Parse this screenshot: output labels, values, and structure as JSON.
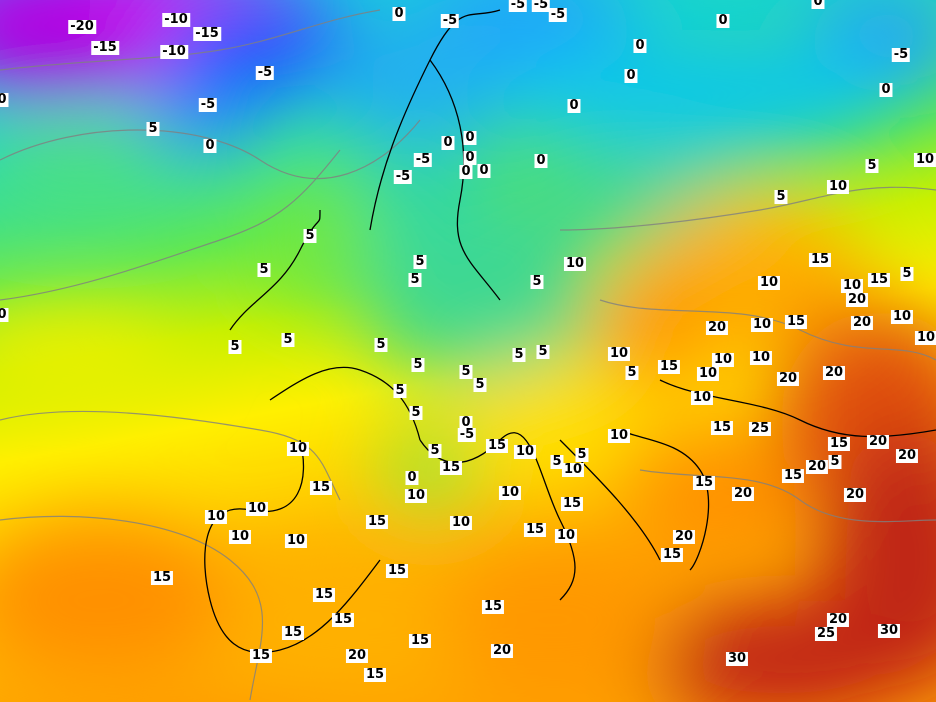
{
  "map": {
    "type": "temperature contour map",
    "color_scale": [
      {
        "value": -20,
        "color": "#c000e8"
      },
      {
        "value": -15,
        "color": "#e020f0"
      },
      {
        "value": -10,
        "color": "#2040ff"
      },
      {
        "value": -5,
        "color": "#1890ff"
      },
      {
        "value": 0,
        "color": "#10c8f0"
      },
      {
        "value": 5,
        "color": "#30e090"
      },
      {
        "value": 7,
        "color": "#70e840"
      },
      {
        "value": 10,
        "color": "#c8f000"
      },
      {
        "value": 12,
        "color": "#fff000"
      },
      {
        "value": 15,
        "color": "#ffc000"
      },
      {
        "value": 20,
        "color": "#ff9000"
      },
      {
        "value": 25,
        "color": "#e85010"
      },
      {
        "value": 30,
        "color": "#b01818"
      }
    ],
    "contour_color": "#808080",
    "border_color": "#000000",
    "labels": [
      "-20",
      "-10",
      "-15",
      "-15",
      "-10",
      "-5",
      "-5",
      "5",
      "0",
      "0",
      "-5",
      "-5",
      "-5",
      "-5",
      "0",
      "0",
      "0",
      "0",
      "-5",
      "0",
      "0",
      "0",
      "0",
      "-5",
      "-5",
      "0",
      "0",
      "0",
      "0",
      "5",
      "10",
      "5",
      "10",
      "5",
      "5",
      "5",
      "5",
      "5",
      "10",
      "15",
      "10",
      "10",
      "15",
      "5",
      "20",
      "0",
      "5",
      "5",
      "5",
      "5",
      "5",
      "5",
      "10",
      "20",
      "10",
      "15",
      "20",
      "10",
      "10",
      "5",
      "5",
      "5",
      "5",
      "15",
      "10",
      "10",
      "10",
      "20",
      "20",
      "5",
      "10",
      "10",
      "0",
      "-5",
      "5",
      "15",
      "10",
      "5",
      "5",
      "10",
      "10",
      "15",
      "25",
      "15",
      "20",
      "20",
      "15",
      "0",
      "10",
      "15",
      "10",
      "15",
      "20",
      "15",
      "20",
      "5",
      "20",
      "10",
      "10",
      "10",
      "10",
      "15",
      "10",
      "15",
      "15",
      "10",
      "20",
      "15",
      "15",
      "15",
      "15",
      "15",
      "15",
      "15",
      "15",
      "20",
      "15",
      "15",
      "20",
      "20",
      "25",
      "30",
      "30",
      "0"
    ]
  }
}
